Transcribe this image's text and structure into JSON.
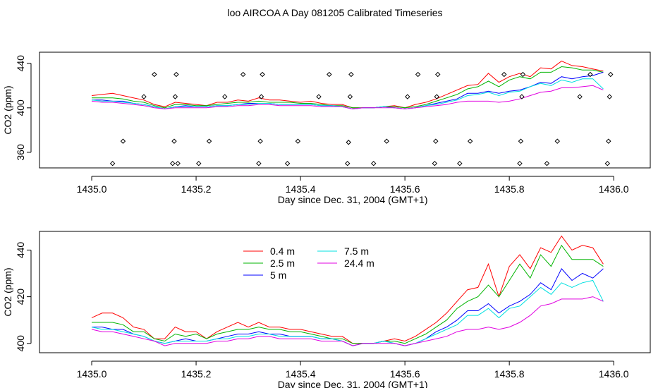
{
  "page": {
    "title": "loo AIRCOA A  Day 081205  Calibrated Timeseries"
  },
  "colors": {
    "0.4 m": "#ff0000",
    "2.5 m": "#00b400",
    "5 m": "#0000ff",
    "7.5 m": "#00e0e0",
    "24.4 m": "#e000e0"
  },
  "chart_data": [
    {
      "type": "line",
      "title": "",
      "xlabel": "Day since Dec. 31, 2004 (GMT+1)",
      "ylabel": "CO2 (ppm)",
      "xlim": [
        1434.9,
        1436.07
      ],
      "ylim": [
        346,
        450
      ],
      "xticks": [
        1435.0,
        1435.2,
        1435.4,
        1435.6,
        1435.8,
        1436.0
      ],
      "xtick_labels": [
        "1435.0",
        "1435.2",
        "1435.4",
        "1435.6",
        "1435.8",
        "1436.0"
      ],
      "yticks": [
        360,
        400,
        440
      ],
      "ytick_labels": [
        "360",
        "400",
        "440"
      ],
      "grid": false,
      "legend": "none",
      "markers": {
        "style": "open-diamond",
        "x": [
          1435.04,
          1435.06,
          1435.1,
          1435.12,
          1435.155,
          1435.158,
          1435.16,
          1435.162,
          1435.165,
          1435.205,
          1435.225,
          1435.255,
          1435.29,
          1435.32,
          1435.323,
          1435.325,
          1435.327,
          1435.375,
          1435.395,
          1435.435,
          1435.455,
          1435.49,
          1435.492,
          1435.495,
          1435.497,
          1435.54,
          1435.565,
          1435.605,
          1435.625,
          1435.657,
          1435.659,
          1435.661,
          1435.663,
          1435.705,
          1435.725,
          1435.79,
          1435.82,
          1435.822,
          1435.824,
          1435.826,
          1435.872,
          1435.892,
          1435.935,
          1435.955,
          1435.988,
          1435.99,
          1435.992,
          1435.994
        ],
        "y": [
          350,
          370,
          410,
          430,
          350,
          370,
          410,
          430,
          350,
          350,
          370,
          410,
          430,
          350,
          370,
          410,
          430,
          350,
          370,
          410,
          430,
          350,
          369,
          410,
          430,
          350,
          370,
          410,
          430,
          350,
          370,
          410,
          430,
          350,
          370,
          430,
          350,
          370,
          410,
          430,
          350,
          370,
          410,
          430,
          350,
          370,
          410,
          430
        ]
      },
      "x": [
        1435.0,
        1435.02,
        1435.04,
        1435.06,
        1435.08,
        1435.1,
        1435.12,
        1435.14,
        1435.16,
        1435.18,
        1435.2,
        1435.22,
        1435.24,
        1435.26,
        1435.28,
        1435.3,
        1435.32,
        1435.34,
        1435.36,
        1435.38,
        1435.4,
        1435.42,
        1435.44,
        1435.46,
        1435.48,
        1435.5,
        1435.52,
        1435.54,
        1435.56,
        1435.58,
        1435.6,
        1435.62,
        1435.64,
        1435.66,
        1435.68,
        1435.7,
        1435.72,
        1435.74,
        1435.76,
        1435.78,
        1435.8,
        1435.82,
        1435.84,
        1435.86,
        1435.88,
        1435.9,
        1435.92,
        1435.94,
        1435.96,
        1435.98
      ],
      "series": [
        {
          "name": "0.4 m",
          "values": [
            411,
            412,
            413,
            411,
            409,
            407,
            403,
            401,
            405,
            404,
            403,
            402,
            405,
            405,
            407,
            406,
            409,
            407,
            407,
            406,
            405,
            406,
            404,
            403,
            403,
            400,
            400,
            400,
            401,
            402,
            400,
            403,
            405,
            408,
            412,
            416,
            420,
            421,
            431,
            423,
            428,
            431,
            428,
            436,
            435,
            442,
            438,
            437,
            435,
            433
          ]
        },
        {
          "name": "2.5 m",
          "values": [
            409,
            409,
            409,
            408,
            406,
            405,
            402,
            400,
            403,
            403,
            402,
            402,
            403,
            404,
            405,
            405,
            406,
            405,
            405,
            405,
            404,
            404,
            403,
            402,
            402,
            400,
            400,
            400,
            401,
            401,
            400,
            401,
            403,
            406,
            409,
            412,
            417,
            419,
            424,
            419,
            425,
            428,
            426,
            432,
            432,
            437,
            436,
            434,
            434,
            432
          ]
        },
        {
          "name": "5 m",
          "values": [
            407,
            407,
            406,
            406,
            404,
            403,
            401,
            399,
            401,
            402,
            401,
            401,
            402,
            402,
            403,
            404,
            404,
            404,
            403,
            403,
            403,
            403,
            402,
            402,
            401,
            399,
            400,
            400,
            401,
            400,
            399,
            400,
            402,
            404,
            406,
            408,
            413,
            413,
            415,
            413,
            415,
            416,
            419,
            423,
            422,
            428,
            426,
            428,
            429,
            432
          ]
        },
        {
          "name": "7.5 m",
          "values": [
            407,
            406,
            406,
            405,
            404,
            403,
            401,
            399,
            401,
            401,
            401,
            401,
            402,
            402,
            403,
            403,
            404,
            404,
            403,
            403,
            403,
            403,
            402,
            402,
            401,
            399,
            400,
            400,
            401,
            400,
            399,
            400,
            402,
            403,
            405,
            407,
            411,
            412,
            414,
            411,
            414,
            415,
            419,
            422,
            420,
            425,
            423,
            426,
            426,
            417
          ]
        },
        {
          "name": "24.4 m",
          "values": [
            406,
            405,
            405,
            404,
            403,
            402,
            400,
            399,
            400,
            400,
            400,
            400,
            401,
            401,
            402,
            402,
            403,
            403,
            402,
            402,
            402,
            402,
            401,
            401,
            401,
            399,
            400,
            400,
            400,
            400,
            399,
            400,
            401,
            402,
            403,
            405,
            406,
            406,
            406,
            405,
            406,
            408,
            411,
            414,
            415,
            418,
            418,
            419,
            420,
            416
          ]
        }
      ]
    },
    {
      "type": "line",
      "title": "",
      "xlabel": "Day since Dec. 31, 2004 (GMT+1)",
      "ylabel": "CO2 (ppm)",
      "xlim": [
        1434.9,
        1436.07
      ],
      "ylim": [
        396,
        448
      ],
      "xticks": [
        1435.0,
        1435.2,
        1435.4,
        1435.6,
        1435.8,
        1436.0
      ],
      "xtick_labels": [
        "1435.0",
        "1435.2",
        "1435.4",
        "1435.6",
        "1435.8",
        "1436.0"
      ],
      "yticks": [
        400,
        420,
        440
      ],
      "ytick_labels": [
        "400",
        "420",
        "440"
      ],
      "grid": false,
      "legend": "top-center",
      "x": [
        1435.0,
        1435.02,
        1435.04,
        1435.06,
        1435.08,
        1435.1,
        1435.12,
        1435.14,
        1435.16,
        1435.18,
        1435.2,
        1435.22,
        1435.24,
        1435.26,
        1435.28,
        1435.3,
        1435.32,
        1435.34,
        1435.36,
        1435.38,
        1435.4,
        1435.42,
        1435.44,
        1435.46,
        1435.48,
        1435.5,
        1435.52,
        1435.54,
        1435.56,
        1435.58,
        1435.6,
        1435.62,
        1435.64,
        1435.66,
        1435.68,
        1435.7,
        1435.72,
        1435.74,
        1435.76,
        1435.78,
        1435.8,
        1435.82,
        1435.84,
        1435.86,
        1435.88,
        1435.9,
        1435.92,
        1435.94,
        1435.96,
        1435.98
      ],
      "series": [
        {
          "name": "0.4 m",
          "values": [
            411,
            413,
            413,
            411,
            407,
            406,
            402,
            402,
            407,
            405,
            405,
            402,
            405,
            407,
            409,
            407,
            409,
            407,
            407,
            406,
            406,
            405,
            404,
            403,
            403,
            400,
            400,
            400,
            401,
            402,
            401,
            403,
            406,
            409,
            413,
            418,
            423,
            424,
            434,
            420,
            433,
            438,
            432,
            441,
            439,
            446,
            440,
            442,
            441,
            434
          ]
        },
        {
          "name": "2.5 m",
          "values": [
            409,
            409,
            409,
            408,
            405,
            405,
            402,
            401,
            404,
            403,
            404,
            402,
            404,
            405,
            406,
            406,
            407,
            406,
            406,
            405,
            405,
            404,
            403,
            402,
            402,
            400,
            400,
            400,
            401,
            401,
            400,
            402,
            404,
            407,
            410,
            415,
            418,
            420,
            425,
            420,
            427,
            434,
            428,
            438,
            433,
            442,
            436,
            436,
            436,
            433
          ]
        },
        {
          "name": "5 m",
          "values": [
            407,
            407,
            406,
            406,
            404,
            403,
            401,
            400,
            401,
            402,
            401,
            401,
            402,
            403,
            404,
            404,
            405,
            404,
            404,
            403,
            403,
            403,
            402,
            402,
            401,
            399,
            400,
            400,
            401,
            400,
            399,
            400,
            402,
            405,
            407,
            410,
            414,
            414,
            417,
            413,
            416,
            418,
            421,
            426,
            423,
            432,
            427,
            430,
            428,
            432
          ]
        },
        {
          "name": "7.5 m",
          "values": [
            407,
            406,
            406,
            405,
            404,
            403,
            401,
            400,
            401,
            401,
            401,
            401,
            402,
            402,
            403,
            403,
            404,
            404,
            403,
            403,
            403,
            403,
            402,
            402,
            401,
            399,
            400,
            400,
            401,
            400,
            399,
            400,
            402,
            404,
            406,
            408,
            412,
            412,
            415,
            411,
            415,
            416,
            420,
            424,
            421,
            426,
            424,
            426,
            427,
            418
          ]
        },
        {
          "name": "24.4 m",
          "values": [
            406,
            405,
            405,
            404,
            403,
            402,
            401,
            399,
            400,
            400,
            400,
            400,
            401,
            401,
            402,
            402,
            403,
            403,
            402,
            402,
            402,
            402,
            401,
            401,
            401,
            399,
            400,
            400,
            400,
            400,
            399,
            400,
            401,
            402,
            403,
            405,
            406,
            406,
            407,
            406,
            407,
            409,
            412,
            416,
            417,
            419,
            419,
            419,
            420,
            418
          ]
        }
      ]
    }
  ]
}
